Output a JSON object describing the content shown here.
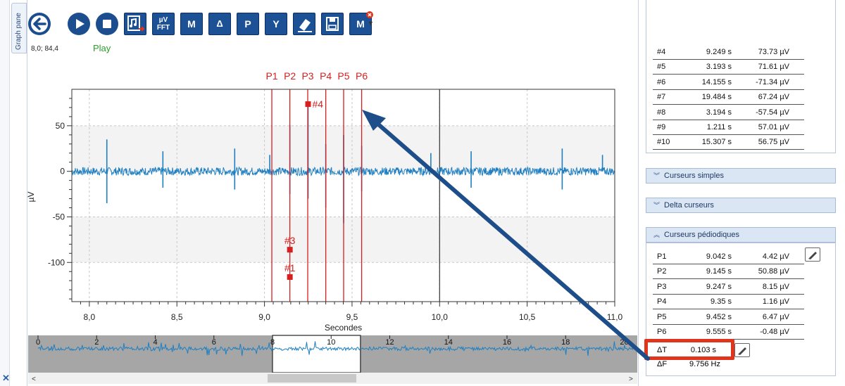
{
  "side_tab": {
    "label": "Graph pane"
  },
  "toolbar": {
    "buttons": [
      {
        "name": "back-button",
        "icon": "arrow-left-icon"
      },
      {
        "name": "play-button",
        "icon": "play-icon"
      },
      {
        "name": "stop-button",
        "icon": "stop-icon"
      },
      {
        "name": "export-button",
        "icon": "music-export-icon"
      },
      {
        "name": "fft-button",
        "label_top": "µV",
        "label_bottom": "FFT"
      },
      {
        "name": "marker-button",
        "label": "M"
      },
      {
        "name": "delta-button",
        "label": "Δ"
      },
      {
        "name": "periodic-button",
        "label": "P"
      },
      {
        "name": "y-scale-button",
        "label": "Y"
      },
      {
        "name": "eraser-button",
        "icon": "eraser-icon"
      },
      {
        "name": "save-button",
        "icon": "save-icon"
      },
      {
        "name": "marker-remove-button",
        "label": "M"
      }
    ]
  },
  "status": {
    "coords": "8,0; 84,4",
    "play": "Play"
  },
  "chart_data": {
    "type": "line",
    "xlabel": "Secondes",
    "ylabel": "µV",
    "xlim": [
      7.9,
      11.0
    ],
    "ylim": [
      -143,
      90
    ],
    "x_ticks": [
      "8,0",
      "8,5",
      "9,0",
      "9,5",
      "10,0",
      "10,5",
      "11,0"
    ],
    "x_tick_values": [
      8.0,
      8.5,
      9.0,
      9.5,
      10.0,
      10.5,
      11.0
    ],
    "y_ticks": [
      "50",
      "0",
      "-50",
      "-100"
    ],
    "y_tick_values": [
      50,
      0,
      -50,
      -100
    ],
    "grid": true,
    "series_color": "#1f7fc1",
    "cursor_color": "#d81f1f",
    "cursors": [
      {
        "label": "P1",
        "x": 9.042
      },
      {
        "label": "P2",
        "x": 9.145
      },
      {
        "label": "P3",
        "x": 9.247
      },
      {
        "label": "P4",
        "x": 9.35
      },
      {
        "label": "P5",
        "x": 9.452
      },
      {
        "label": "P6",
        "x": 9.555
      }
    ],
    "markers": [
      {
        "label": "#4",
        "x": 9.249,
        "y": 73.73
      },
      {
        "label": "#3",
        "x": 9.145,
        "y": -86.0
      },
      {
        "label": "#1",
        "x": 9.145,
        "y": -116.0
      }
    ],
    "spikes": [
      {
        "x": 8.1,
        "y": -35
      },
      {
        "x": 8.1,
        "y": 35
      },
      {
        "x": 8.42,
        "y": 22
      },
      {
        "x": 8.42,
        "y": -18
      },
      {
        "x": 8.83,
        "y": 25
      },
      {
        "x": 8.83,
        "y": -20
      },
      {
        "x": 9.03,
        "y": 18
      },
      {
        "x": 9.145,
        "y": 50.88
      },
      {
        "x": 9.145,
        "y": -25
      },
      {
        "x": 9.249,
        "y": 73.73
      },
      {
        "x": 9.249,
        "y": -30
      },
      {
        "x": 9.35,
        "y": 30
      },
      {
        "x": 9.35,
        "y": -40
      },
      {
        "x": 9.452,
        "y": -57
      },
      {
        "x": 9.452,
        "y": 40
      },
      {
        "x": 9.555,
        "y": 28
      },
      {
        "x": 9.555,
        "y": -22
      },
      {
        "x": 9.95,
        "y": 20
      },
      {
        "x": 10.18,
        "y": 22
      },
      {
        "x": 10.18,
        "y": -18
      },
      {
        "x": 10.7,
        "y": 25
      },
      {
        "x": 10.7,
        "y": -20
      },
      {
        "x": 10.93,
        "y": 18
      }
    ]
  },
  "overview": {
    "ticks": [
      "0",
      "2",
      "4",
      "6",
      "8",
      "10",
      "12",
      "14",
      "16",
      "18",
      "20"
    ],
    "tick_values": [
      0,
      2,
      4,
      6,
      8,
      10,
      12,
      14,
      16,
      18,
      20
    ],
    "range": [
      0,
      20.3
    ],
    "window": [
      8.0,
      11.0
    ]
  },
  "right_panel": {
    "peaks_table": [
      {
        "id": "#4",
        "time": "9.249 s",
        "value": "73.73 µV"
      },
      {
        "id": "#5",
        "time": "3.193 s",
        "value": "71.61 µV"
      },
      {
        "id": "#6",
        "time": "14.155 s",
        "value": "-71.34 µV"
      },
      {
        "id": "#7",
        "time": "19.484 s",
        "value": "67.24 µV"
      },
      {
        "id": "#8",
        "time": "3.194 s",
        "value": "-57.54 µV"
      },
      {
        "id": "#9",
        "time": "1.211 s",
        "value": "57.01 µV"
      },
      {
        "id": "#10",
        "time": "15.307 s",
        "value": "56.75 µV"
      }
    ],
    "section_simple": "Curseurs simples",
    "section_delta": "Delta curseurs",
    "section_periodic": "Curseurs pédiodiques",
    "periodic_rows": [
      {
        "id": "P1",
        "time": "9.042 s",
        "value": "4.42 µV"
      },
      {
        "id": "P2",
        "time": "9.145 s",
        "value": "50.88 µV"
      },
      {
        "id": "P3",
        "time": "9.247 s",
        "value": "8.15 µV"
      },
      {
        "id": "P4",
        "time": "9.35 s",
        "value": "1.16 µV"
      },
      {
        "id": "P5",
        "time": "9.452 s",
        "value": "6.47 µV"
      },
      {
        "id": "P6",
        "time": "9.555 s",
        "value": "-0.48 µV"
      }
    ],
    "delta_t": {
      "label": "ΔT",
      "value": "0.103 s"
    },
    "delta_f": {
      "label": "ΔF",
      "value": "9.756 Hz"
    }
  },
  "annotation": {
    "arrow_color": "#1d4e89",
    "highlight_color": "#e0341c"
  }
}
